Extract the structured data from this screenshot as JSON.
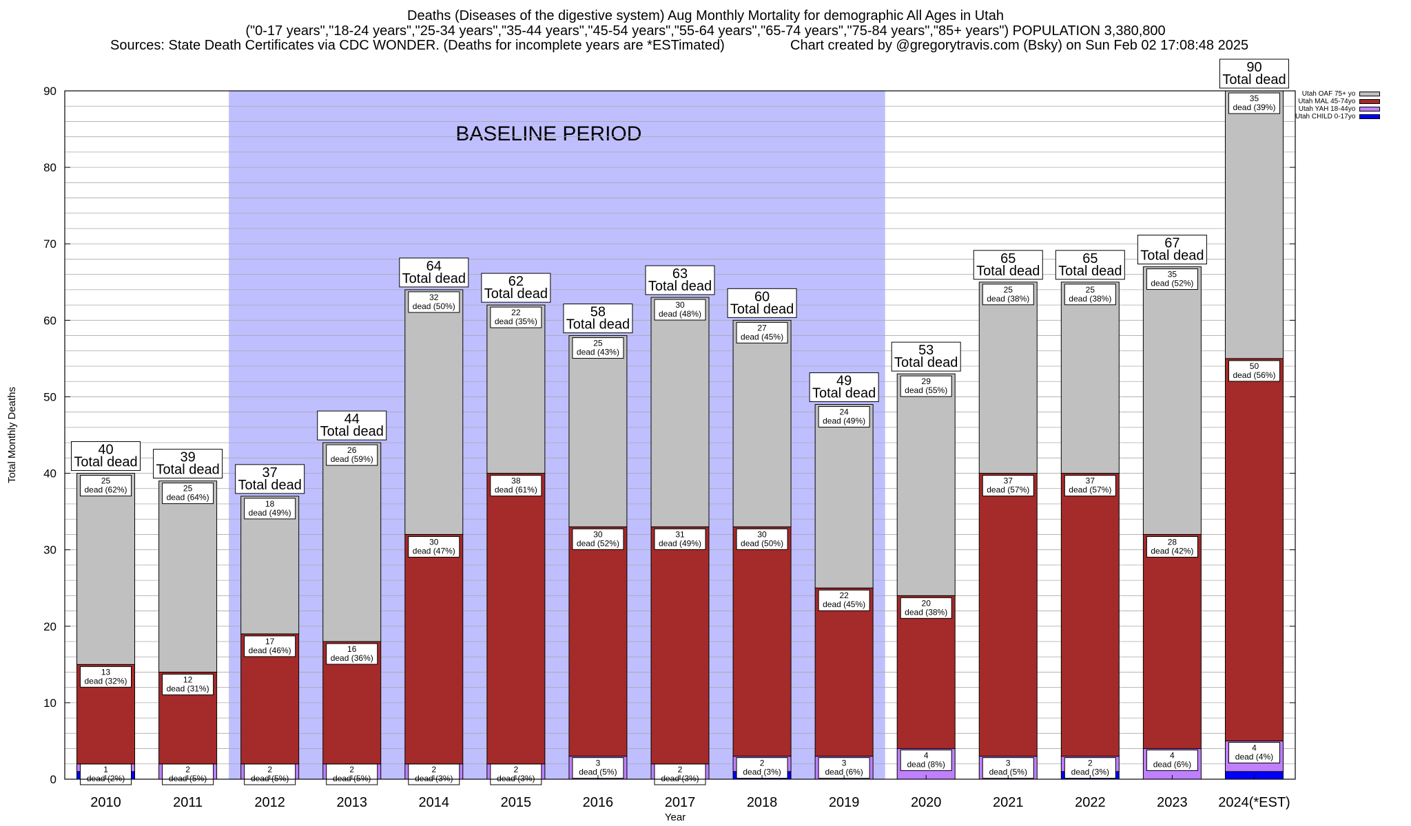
{
  "title": {
    "line1": "Deaths (Diseases of the digestive system) Aug Monthly Mortality for demographic All Ages in Utah",
    "line2": "(\"0-17 years\",\"18-24 years\",\"25-34 years\",\"35-44 years\",\"45-54 years\",\"55-64 years\",\"65-74 years\",\"75-84 years\",\"85+ years\") POPULATION 3,380,800",
    "sources": "Sources: State Death Certificates via CDC WONDER. (Deaths for incomplete years are *ESTimated)",
    "credit": "Chart created by @gregorytravis.com (Bsky) on Sun Feb 02 17:08:48 2025"
  },
  "chart_data": {
    "type": "bar",
    "stacked": true,
    "xlabel": "Year",
    "ylabel": "Total Monthly Deaths",
    "ylim": [
      0,
      90
    ],
    "yticks": [
      0,
      10,
      20,
      30,
      40,
      50,
      60,
      70,
      80,
      90
    ],
    "grid": true,
    "legend_position": "top-right",
    "baseline_label": "BASELINE PERIOD",
    "baseline_categories": [
      "2012",
      "2019"
    ],
    "total_suffix": "Total dead",
    "segment_label_word": "dead",
    "categories": [
      "2010",
      "2011",
      "2012",
      "2013",
      "2014",
      "2015",
      "2016",
      "2017",
      "2018",
      "2019",
      "2020",
      "2021",
      "2022",
      "2023",
      "2024(*EST)"
    ],
    "totals": [
      40,
      39,
      37,
      44,
      64,
      62,
      58,
      63,
      60,
      49,
      53,
      65,
      65,
      67,
      90
    ],
    "series": [
      {
        "name": "Utah CHILD 0-17yo",
        "color": "#0000ff",
        "values": [
          1,
          0,
          0,
          0,
          0,
          0,
          0,
          0,
          1,
          0,
          0,
          0,
          1,
          0,
          1
        ],
        "labels": [
          "",
          "",
          "",
          "",
          "",
          "",
          "",
          "",
          "",
          "",
          "",
          "",
          "",
          "",
          ""
        ]
      },
      {
        "name": "Utah YAH 18-44yo",
        "color": "#bf80ff",
        "values": [
          1,
          2,
          2,
          2,
          2,
          2,
          3,
          2,
          2,
          3,
          4,
          3,
          2,
          4,
          4
        ],
        "labels": [
          "1\ndead (2%)",
          "2\ndead (5%)",
          "2\ndead (5%)",
          "2\ndead (5%)",
          "2\ndead (3%)",
          "2\ndead (3%)",
          "3\ndead (5%)",
          "2\ndead (3%)",
          "2\ndead (3%)",
          "3\ndead (6%)",
          "4\ndead (8%)",
          "3\ndead (5%)",
          "2\ndead (3%)",
          "4\ndead (6%)",
          "4\ndead (4%)"
        ]
      },
      {
        "name": "Utah MAL 45-74yo",
        "color": "#a52a2a",
        "values": [
          13,
          12,
          17,
          16,
          30,
          38,
          30,
          31,
          30,
          22,
          20,
          37,
          37,
          28,
          50
        ],
        "labels": [
          "13\ndead (32%)",
          "12\ndead (31%)",
          "17\ndead (46%)",
          "16\ndead (36%)",
          "30\ndead (47%)",
          "38\ndead (61%)",
          "30\ndead (52%)",
          "31\ndead (49%)",
          "30\ndead (50%)",
          "22\ndead (45%)",
          "20\ndead (38%)",
          "37\ndead (57%)",
          "37\ndead (57%)",
          "28\ndead (42%)",
          "50\ndead (56%)"
        ]
      },
      {
        "name": "Utah OAF 75+ yo",
        "color": "#c0c0c0",
        "values": [
          25,
          25,
          18,
          26,
          32,
          22,
          25,
          30,
          27,
          24,
          29,
          25,
          25,
          35,
          35
        ],
        "labels": [
          "25\ndead (62%)",
          "25\ndead (64%)",
          "18\ndead (49%)",
          "26\ndead (59%)",
          "32\ndead (50%)",
          "22\ndead (35%)",
          "25\ndead (43%)",
          "30\ndead (48%)",
          "27\ndead (45%)",
          "24\ndead (49%)",
          "29\ndead (55%)",
          "25\ndead (38%)",
          "25\ndead (38%)",
          "35\ndead (52%)",
          "35\ndead (39%)"
        ]
      }
    ],
    "legend_order": [
      "Utah OAF 75+ yo",
      "Utah MAL 45-74yo",
      "Utah YAH 18-44yo",
      "Utah CHILD 0-17yo"
    ],
    "baseline_fill": "#bfbfff"
  }
}
